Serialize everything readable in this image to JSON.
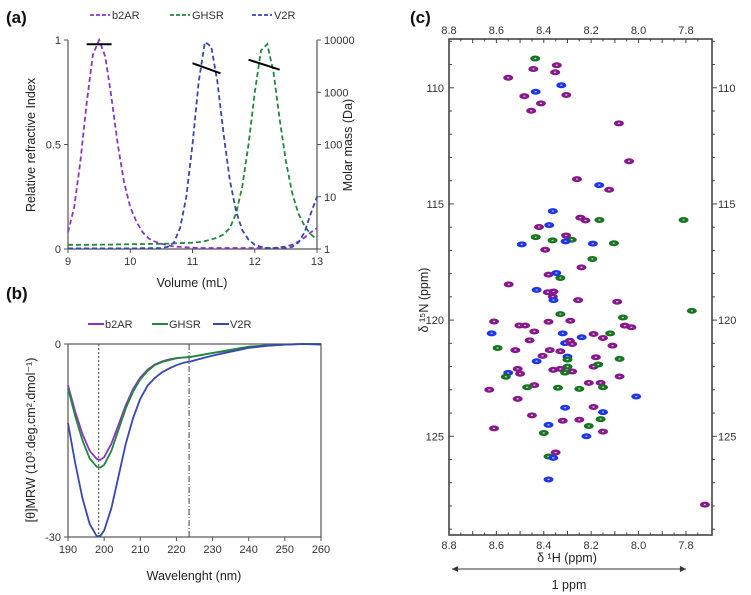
{
  "chart_data": [
    {
      "panel_label": "(a)",
      "type": "line",
      "xlabel": "Volume (mL)",
      "ylabel": "Relative refractive Index",
      "y2label": "Molar mass (Da)",
      "xlim": [
        9,
        13
      ],
      "ylim": [
        0,
        1
      ],
      "y2lim": [
        1,
        10000
      ],
      "y2scale": "log",
      "xticks": [
        9,
        10,
        11,
        12,
        13
      ],
      "yticks": [
        0,
        0.5,
        1
      ],
      "y2ticks": [
        1,
        10,
        100,
        1000,
        10000
      ],
      "legend_position": "top",
      "line_style": "dashed",
      "x": [
        9.0,
        9.1,
        9.2,
        9.3,
        9.4,
        9.5,
        9.6,
        9.7,
        9.8,
        9.9,
        10.0,
        10.1,
        10.2,
        10.3,
        10.4,
        10.5,
        10.6,
        10.7,
        10.8,
        10.9,
        11.0,
        11.1,
        11.2,
        11.3,
        11.4,
        11.5,
        11.6,
        11.7,
        11.8,
        11.9,
        12.0,
        12.1,
        12.2,
        12.3,
        12.4,
        12.5,
        12.6,
        12.7,
        12.8,
        12.9,
        13.0
      ],
      "series": [
        {
          "name": "b2AR",
          "color": "#8a35c9",
          "values": [
            0.08,
            0.2,
            0.42,
            0.7,
            0.93,
            1.0,
            0.92,
            0.72,
            0.5,
            0.32,
            0.2,
            0.13,
            0.08,
            0.05,
            0.035,
            0.025,
            0.018,
            0.012,
            0.01,
            0.008,
            0.006,
            0.005,
            0.005,
            0.005,
            0.005,
            0.005,
            0.005,
            0.005,
            0.005,
            0.005,
            0.005,
            0.005,
            0.005,
            0.005,
            0.008,
            0.012,
            0.02,
            0.035,
            0.055,
            0.08,
            0.1
          ],
          "molar_mass": {
            "x": [
              9.3,
              9.7
            ],
            "y": [
              8300,
              8300
            ]
          }
        },
        {
          "name": "GHSR",
          "color": "#1f8a3a",
          "values": [
            0.02,
            0.02,
            0.02,
            0.02,
            0.02,
            0.021,
            0.021,
            0.021,
            0.022,
            0.022,
            0.023,
            0.023,
            0.024,
            0.024,
            0.025,
            0.025,
            0.026,
            0.027,
            0.028,
            0.029,
            0.03,
            0.033,
            0.038,
            0.045,
            0.055,
            0.07,
            0.1,
            0.17,
            0.3,
            0.5,
            0.75,
            0.95,
            0.98,
            0.85,
            0.62,
            0.42,
            0.27,
            0.17,
            0.11,
            0.07,
            0.045
          ],
          "molar_mass": {
            "x": [
              11.9,
              12.4
            ],
            "y": [
              4200,
              2700
            ]
          }
        },
        {
          "name": "V2R",
          "color": "#3646b4",
          "values": [
            0.003,
            0.003,
            0.003,
            0.003,
            0.003,
            0.003,
            0.003,
            0.003,
            0.003,
            0.003,
            0.003,
            0.003,
            0.004,
            0.004,
            0.004,
            0.005,
            0.01,
            0.03,
            0.1,
            0.25,
            0.5,
            0.8,
            0.99,
            0.97,
            0.8,
            0.55,
            0.33,
            0.18,
            0.09,
            0.045,
            0.02,
            0.01,
            0.005,
            0.005,
            0.005,
            0.005,
            0.01,
            0.03,
            0.08,
            0.17,
            0.25
          ],
          "molar_mass": {
            "x": [
              11.0,
              11.45
            ],
            "y": [
              3600,
              2300
            ]
          }
        }
      ]
    },
    {
      "panel_label": "(b)",
      "type": "line",
      "xlabel": "Wavelenght (nm)",
      "ylabel": "[θ]MRW (10³.deg.cm².dmol⁻¹)",
      "xlim": [
        190,
        260
      ],
      "ylim": [
        -30,
        0
      ],
      "xticks": [
        190,
        200,
        210,
        220,
        230,
        240,
        250,
        260
      ],
      "yticks": [
        -30,
        0
      ],
      "legend_position": "top",
      "reference_lines": {
        "vertical_dotted": 198.5,
        "vertical_dashdot": 223.5,
        "horizontal_dashed": 0
      },
      "x": [
        190,
        192,
        194,
        196,
        198,
        199,
        200,
        202,
        204,
        206,
        208,
        210,
        212,
        214,
        216,
        218,
        220,
        222,
        224,
        226,
        228,
        230,
        235,
        240,
        245,
        250,
        255,
        260
      ],
      "series": [
        {
          "name": "b2AR",
          "color": "#8a35c9",
          "values": [
            -6.4,
            -10.5,
            -14,
            -16.6,
            -17.9,
            -18.0,
            -17.6,
            -15.5,
            -12.5,
            -9.5,
            -7,
            -5.2,
            -4,
            -3.2,
            -2.7,
            -2.4,
            -2.2,
            -2.1,
            -2.0,
            -1.8,
            -1.6,
            -1.4,
            -1.0,
            -0.5,
            -0.2,
            -0.1,
            0,
            0
          ]
        },
        {
          "name": "GHSR",
          "color": "#1f8a3a",
          "values": [
            -6.9,
            -11.2,
            -15,
            -17.8,
            -19.1,
            -19.2,
            -18.8,
            -16.6,
            -13.3,
            -10,
            -7.4,
            -5.5,
            -4.2,
            -3.3,
            -2.8,
            -2.5,
            -2.2,
            -2.1,
            -2.0,
            -1.8,
            -1.6,
            -1.4,
            -0.9,
            -0.4,
            -0.2,
            -0.1,
            0,
            0
          ]
        },
        {
          "name": "V2R",
          "color": "#3646b4",
          "values": [
            -12.3,
            -18.5,
            -24,
            -28,
            -29.9,
            -29.8,
            -29,
            -25.5,
            -20.5,
            -15.5,
            -11.5,
            -8.5,
            -6.5,
            -5.3,
            -4.4,
            -3.8,
            -3.3,
            -2.9,
            -2.7,
            -2.4,
            -2.1,
            -1.8,
            -1.2,
            -0.6,
            -0.3,
            -0.1,
            0,
            -0.1
          ]
        }
      ]
    },
    {
      "panel_label": "(c)",
      "type": "scatter",
      "xlabel": "δ ¹H (ppm)",
      "ylabel": "δ ¹⁵N (ppm)",
      "scale_bar_label": "1 ppm",
      "xlim": [
        8.8,
        7.69
      ],
      "ylim": [
        107.9,
        129.25
      ],
      "x_reversed": true,
      "y_reversed": true,
      "xticks": [
        8.8,
        8.6,
        8.4,
        8.2,
        8.0,
        7.8
      ],
      "yticks": [
        110,
        115,
        120,
        125
      ],
      "colors": {
        "purple": "#86198a",
        "green": "#17741f",
        "blue": "#1d35f0"
      },
      "peaks": [
        [
          "green",
          8.436,
          108.74
        ],
        [
          "purple",
          8.345,
          109.03
        ],
        [
          "purple",
          8.444,
          109.19
        ],
        [
          "purple",
          8.352,
          109.33
        ],
        [
          "purple",
          8.55,
          109.57
        ],
        [
          "blue",
          8.326,
          109.89
        ],
        [
          "blue",
          8.434,
          110.17
        ],
        [
          "purple",
          8.482,
          110.36
        ],
        [
          "purple",
          8.305,
          110.31
        ],
        [
          "purple",
          8.412,
          110.67
        ],
        [
          "purple",
          8.453,
          110.99
        ],
        [
          "purple",
          8.083,
          111.53
        ],
        [
          "purple",
          8.04,
          113.16
        ],
        [
          "purple",
          8.26,
          113.93
        ],
        [
          "blue",
          8.166,
          114.19
        ],
        [
          "purple",
          8.124,
          114.39
        ],
        [
          "blue",
          8.362,
          115.31
        ],
        [
          "purple",
          8.246,
          115.59
        ],
        [
          "purple",
          8.224,
          115.71
        ],
        [
          "green",
          8.165,
          115.69
        ],
        [
          "green",
          7.81,
          115.69
        ],
        [
          "blue",
          8.377,
          115.91
        ],
        [
          "purple",
          8.42,
          115.99
        ],
        [
          "purple",
          8.306,
          116.36
        ],
        [
          "green",
          8.434,
          116.43
        ],
        [
          "green",
          8.363,
          116.57
        ],
        [
          "green",
          8.282,
          116.54
        ],
        [
          "blue",
          8.308,
          116.61
        ],
        [
          "blue",
          8.493,
          116.74
        ],
        [
          "blue",
          8.193,
          116.71
        ],
        [
          "green",
          8.104,
          116.69
        ],
        [
          "purple",
          8.394,
          116.97
        ],
        [
          "green",
          8.195,
          117.37
        ],
        [
          "purple",
          8.241,
          117.73
        ],
        [
          "purple",
          8.38,
          118.04
        ],
        [
          "blue",
          8.347,
          117.97
        ],
        [
          "green",
          8.33,
          118.19
        ],
        [
          "purple",
          8.548,
          118.46
        ],
        [
          "blue",
          8.43,
          118.7
        ],
        [
          "purple",
          8.359,
          118.77
        ],
        [
          "purple",
          8.383,
          118.8
        ],
        [
          "purple",
          8.362,
          118.99
        ],
        [
          "blue",
          8.359,
          119.14
        ],
        [
          "purple",
          8.255,
          119.14
        ],
        [
          "purple",
          8.09,
          119.21
        ],
        [
          "green",
          7.775,
          119.6
        ],
        [
          "green",
          8.33,
          119.74
        ],
        [
          "purple",
          8.61,
          120.06
        ],
        [
          "purple",
          8.38,
          120.07
        ],
        [
          "purple",
          8.288,
          120.03
        ],
        [
          "green",
          8.066,
          119.89
        ],
        [
          "purple",
          8.503,
          120.23
        ],
        [
          "purple",
          8.479,
          120.23
        ],
        [
          "purple",
          8.058,
          120.24
        ],
        [
          "purple",
          8.03,
          120.31
        ],
        [
          "blue",
          8.62,
          120.57
        ],
        [
          "purple",
          8.44,
          120.49
        ],
        [
          "blue",
          8.32,
          120.57
        ],
        [
          "purple",
          8.19,
          120.6
        ],
        [
          "green",
          8.12,
          120.57
        ],
        [
          "blue",
          8.24,
          120.74
        ],
        [
          "purple",
          8.15,
          120.77
        ],
        [
          "purple",
          8.46,
          120.87
        ],
        [
          "blue",
          8.31,
          120.99
        ],
        [
          "purple",
          8.29,
          120.89
        ],
        [
          "purple",
          8.28,
          121.03
        ],
        [
          "purple",
          8.11,
          121.1
        ],
        [
          "green",
          8.595,
          121.2
        ],
        [
          "purple",
          8.52,
          121.29
        ],
        [
          "purple",
          8.375,
          121.29
        ],
        [
          "purple",
          8.33,
          121.34
        ],
        [
          "purple",
          8.405,
          121.54
        ],
        [
          "blue",
          8.3,
          121.57
        ],
        [
          "green",
          8.3,
          121.7
        ],
        [
          "purple",
          8.18,
          121.6
        ],
        [
          "green",
          8.08,
          121.67
        ],
        [
          "blue",
          8.43,
          121.77
        ],
        [
          "green",
          8.3,
          122.0
        ],
        [
          "purple",
          8.19,
          122.0
        ],
        [
          "green",
          8.17,
          121.91
        ],
        [
          "purple",
          8.51,
          122.1
        ],
        [
          "purple",
          8.36,
          122.14
        ],
        [
          "purple",
          8.33,
          122.1
        ],
        [
          "purple",
          8.28,
          122.21
        ],
        [
          "green",
          8.31,
          122.26
        ],
        [
          "blue",
          8.55,
          122.27
        ],
        [
          "purple",
          8.5,
          122.31
        ],
        [
          "green",
          8.56,
          122.44
        ],
        [
          "purple",
          8.08,
          122.43
        ],
        [
          "purple",
          8.21,
          122.7
        ],
        [
          "purple",
          8.16,
          122.7
        ],
        [
          "purple",
          8.44,
          122.8
        ],
        [
          "green",
          8.47,
          122.89
        ],
        [
          "green",
          8.34,
          122.91
        ],
        [
          "green",
          8.25,
          122.96
        ],
        [
          "green",
          8.15,
          122.89
        ],
        [
          "purple",
          8.63,
          123.0
        ],
        [
          "purple",
          8.51,
          123.39
        ],
        [
          "blue",
          8.01,
          123.29
        ],
        [
          "blue",
          8.31,
          123.77
        ],
        [
          "purple",
          8.19,
          123.74
        ],
        [
          "blue",
          8.15,
          123.96
        ],
        [
          "purple",
          8.45,
          124.1
        ],
        [
          "purple",
          8.25,
          124.29
        ],
        [
          "purple",
          8.32,
          124.33
        ],
        [
          "green",
          8.16,
          124.26
        ],
        [
          "blue",
          8.38,
          124.51
        ],
        [
          "green",
          8.21,
          124.56
        ],
        [
          "purple",
          8.61,
          124.66
        ],
        [
          "purple",
          8.15,
          124.8
        ],
        [
          "green",
          8.4,
          124.86
        ],
        [
          "blue",
          8.22,
          125.0
        ],
        [
          "purple",
          8.35,
          125.7
        ],
        [
          "green",
          8.38,
          125.87
        ],
        [
          "blue",
          8.36,
          125.93
        ],
        [
          "blue",
          8.38,
          126.86
        ],
        [
          "purple",
          7.72,
          127.94
        ]
      ]
    }
  ]
}
